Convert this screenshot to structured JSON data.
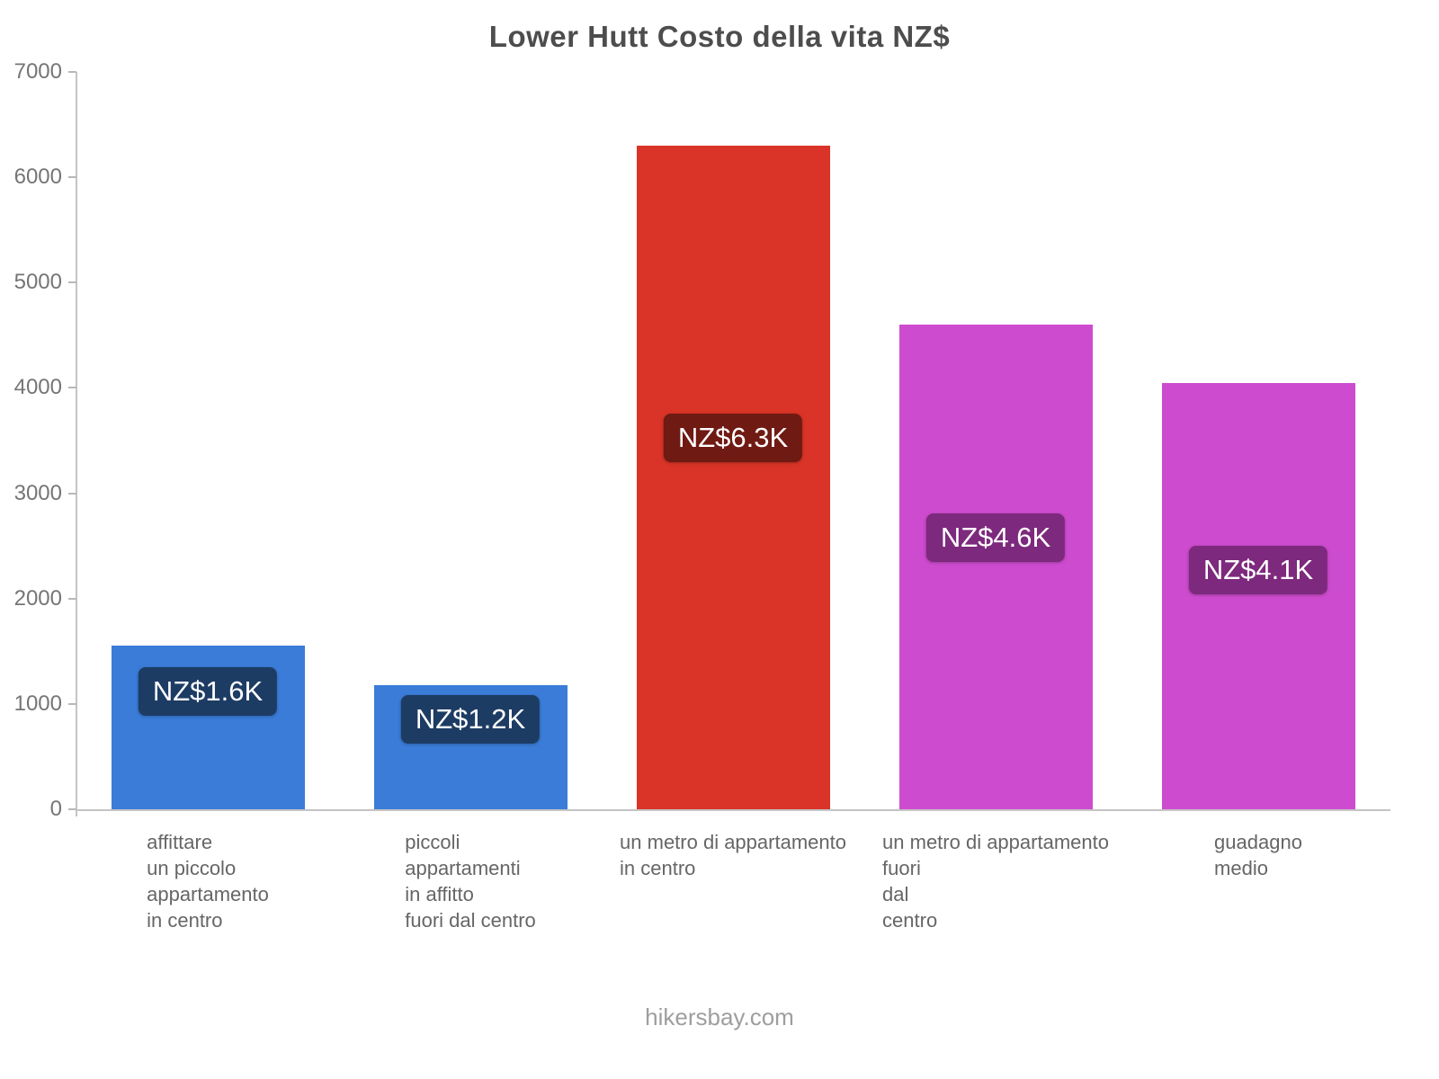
{
  "title": "Lower Hutt Costo della vita NZ$",
  "footer": "hikersbay.com",
  "chart_data": {
    "type": "bar",
    "title": "Lower Hutt Costo della vita NZ$",
    "ylabel": "",
    "xlabel": "",
    "ylim": [
      0,
      7000
    ],
    "yticks": [
      0,
      1000,
      2000,
      3000,
      4000,
      5000,
      6000,
      7000
    ],
    "grid": false,
    "legend": false,
    "categories": [
      "affittare un piccolo appartamento in centro",
      "piccoli appartamenti in affitto fuori dal centro",
      "un metro di appartamento in centro",
      "un metro di appartamento fuori dal centro",
      "guadagno medio"
    ],
    "category_lines": [
      [
        "affittare",
        "un piccolo",
        "appartamento",
        "in centro"
      ],
      [
        "piccoli",
        "appartamenti",
        "in affitto",
        "fuori dal centro"
      ],
      [
        "un metro di appartamento",
        "in centro"
      ],
      [
        "un metro di appartamento",
        "fuori",
        "dal",
        "centro"
      ],
      [
        "guadagno",
        "medio"
      ]
    ],
    "values": [
      1550,
      1180,
      6300,
      4600,
      4050
    ],
    "value_labels": [
      "NZ$1.6K",
      "NZ$1.2K",
      "NZ$6.3K",
      "NZ$4.6K",
      "NZ$4.1K"
    ],
    "bar_colors": [
      "#3a7cd8",
      "#3a7cd8",
      "#d93427",
      "#cd4bce",
      "#cd4bce"
    ],
    "value_label_colors": [
      "#1d3c64",
      "#1d3c64",
      "#6f1a13",
      "#7d297d",
      "#7d297d"
    ]
  }
}
